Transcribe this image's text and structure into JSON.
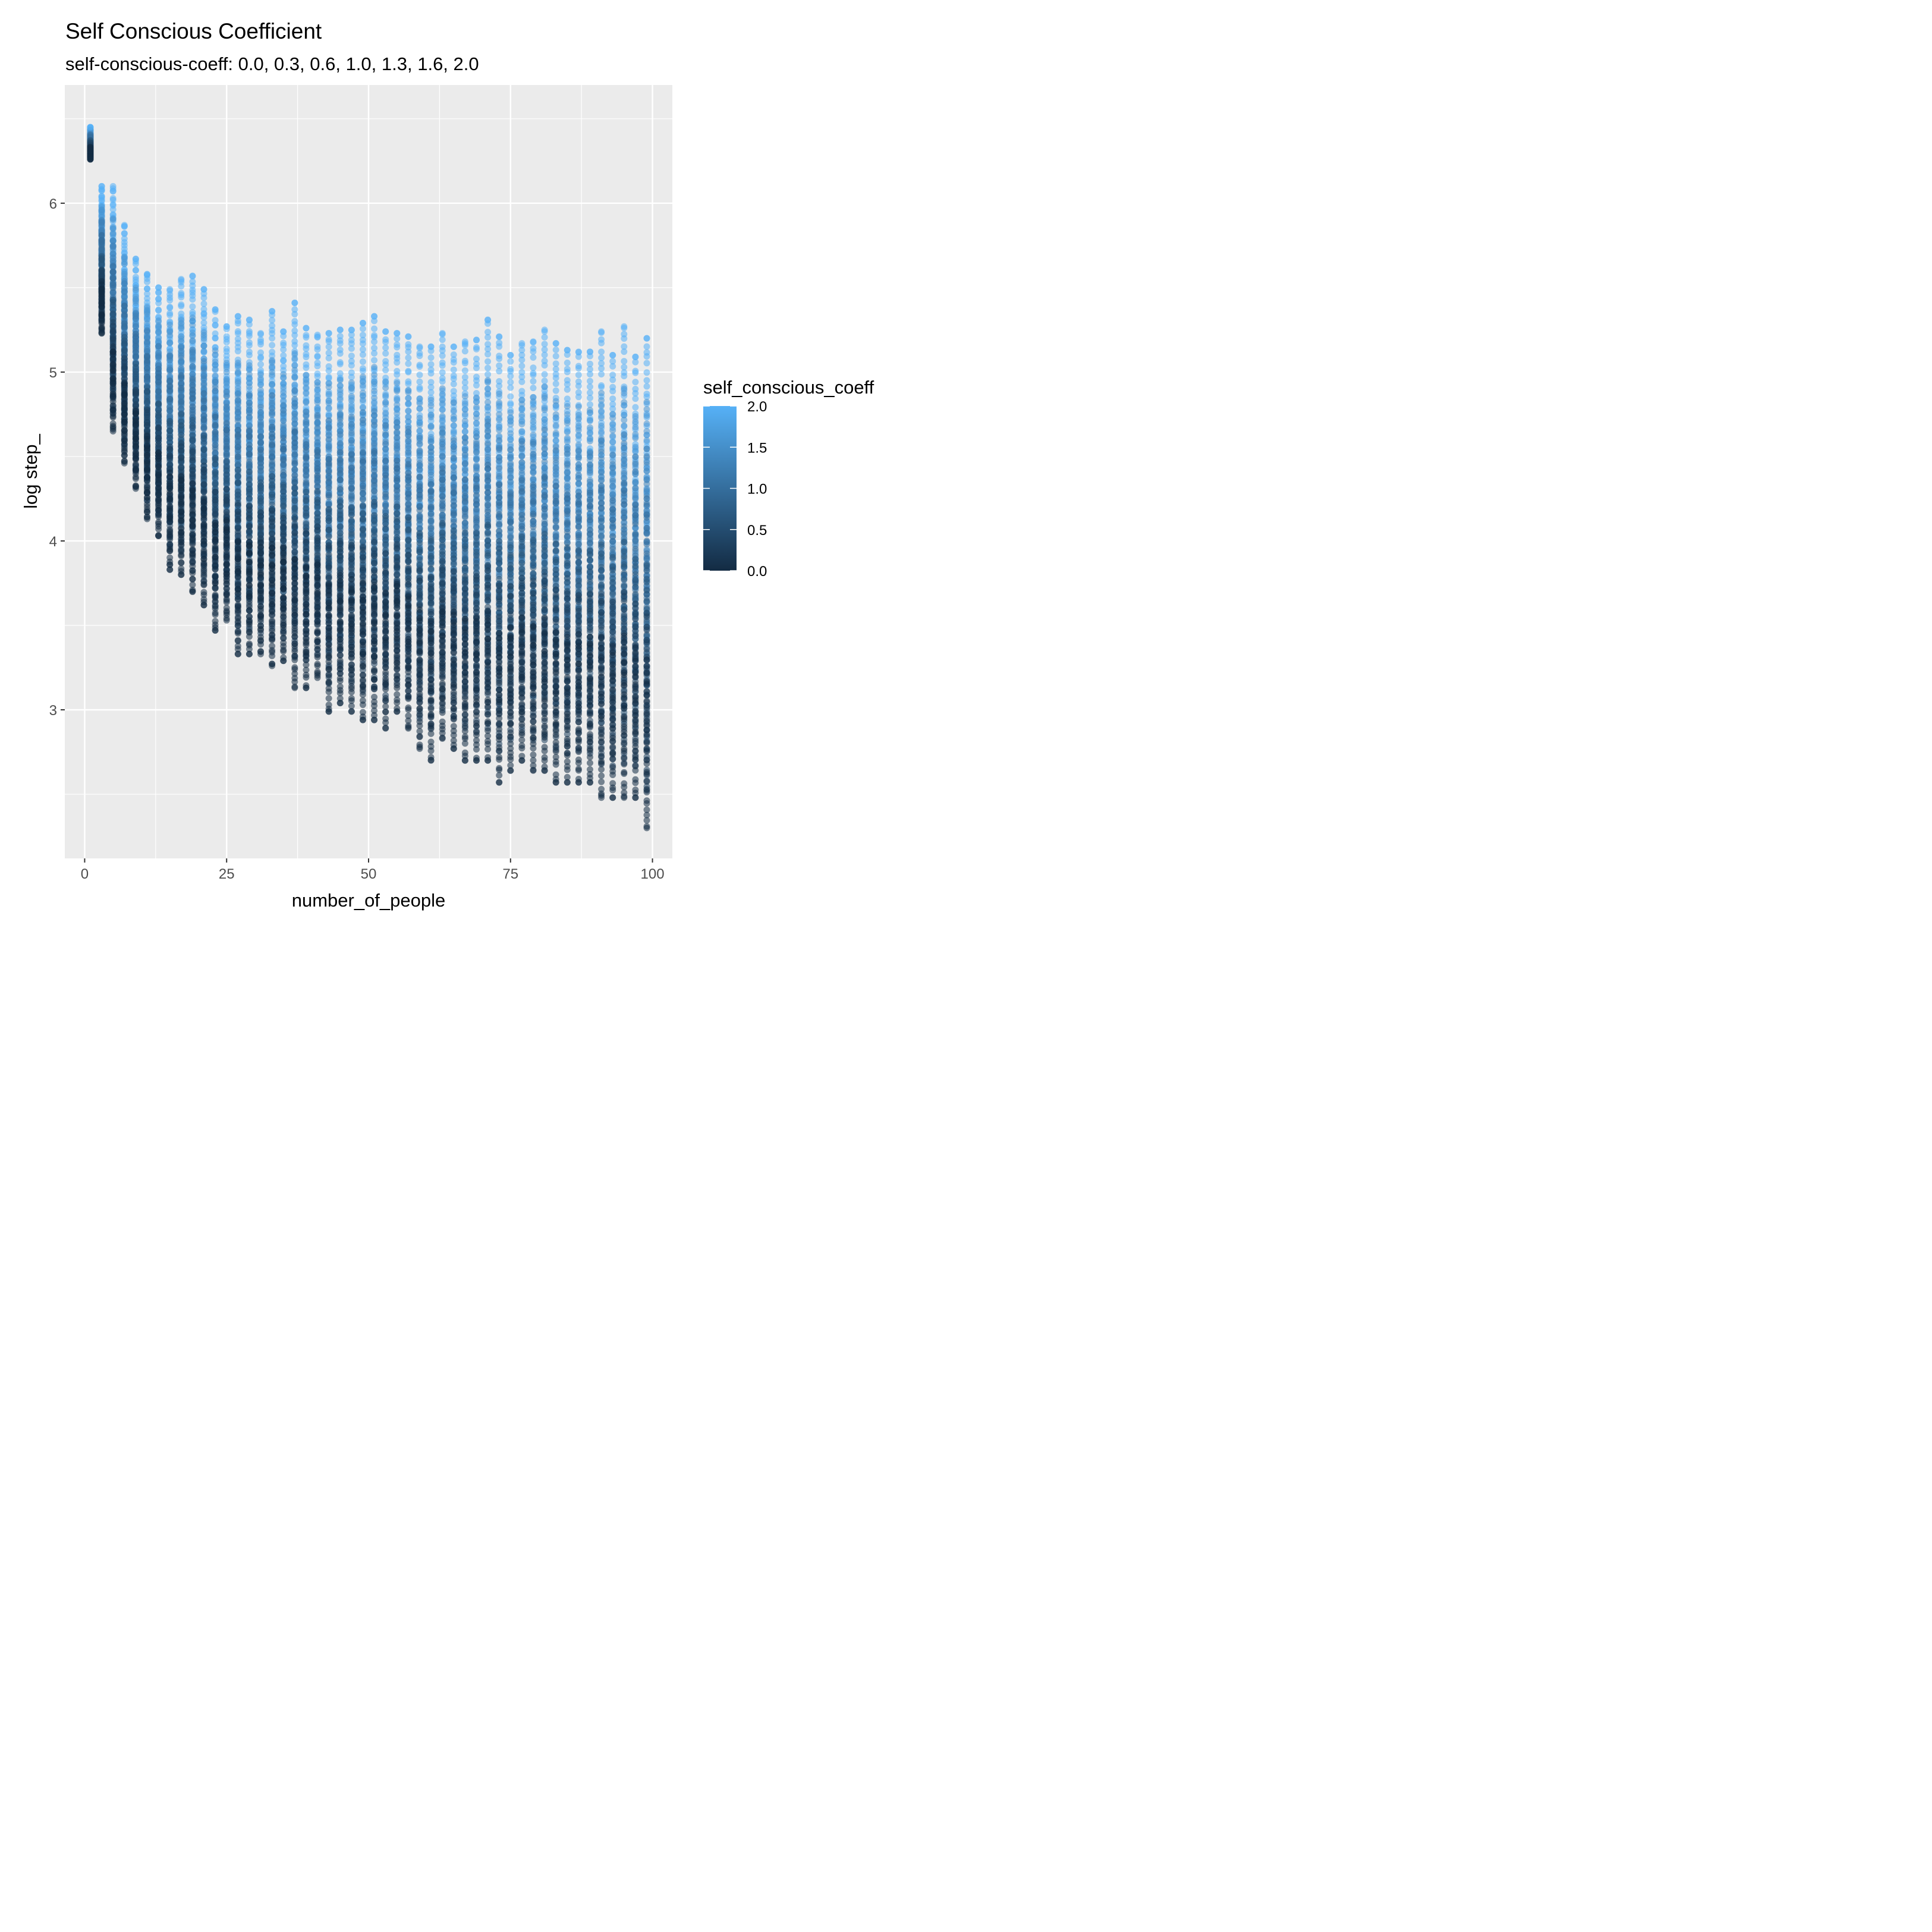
{
  "chart_data": {
    "type": "scatter",
    "title": "Self Conscious Coefficient",
    "subtitle": "self-conscious-coeff: 0.0, 0.3, 0.6, 1.0, 1.3, 1.6, 2.0",
    "xlabel": "number_of_people",
    "ylabel": "log step_",
    "xlim": [
      -3.5,
      103.5
    ],
    "ylim": [
      2.12,
      6.7
    ],
    "x_ticks": [
      0,
      25,
      50,
      75,
      100
    ],
    "x_tick_labels": [
      "0",
      "25",
      "50",
      "75",
      "100"
    ],
    "y_ticks": [
      3,
      4,
      5,
      6
    ],
    "y_tick_labels": [
      "3",
      "4",
      "5",
      "6"
    ],
    "grid": true,
    "legend": {
      "title": "self_conscious_coeff",
      "type": "colorbar",
      "placement": "right",
      "range": [
        0.0,
        2.0
      ],
      "ticks": [
        0.0,
        0.5,
        1.0,
        1.5,
        2.0
      ],
      "tick_labels": [
        "0.0",
        "0.5",
        "1.0",
        "1.5",
        "2.0"
      ],
      "color_low": "#132B43",
      "color_high": "#56B1F7"
    },
    "coeff_levels": [
      0.0,
      0.3,
      0.6,
      1.0,
      1.3,
      1.6,
      2.0
    ],
    "x_values": [
      1,
      3,
      5,
      7,
      9,
      11,
      13,
      15,
      17,
      19,
      21,
      23,
      25,
      27,
      29,
      31,
      33,
      35,
      37,
      39,
      41,
      43,
      45,
      47,
      49,
      51,
      53,
      55,
      57,
      59,
      61,
      63,
      65,
      67,
      69,
      71,
      73,
      75,
      77,
      79,
      81,
      83,
      85,
      87,
      89,
      91,
      93,
      95,
      97,
      99
    ],
    "column_envelope": {
      "x": [
        1,
        3,
        5,
        7,
        9,
        11,
        13,
        15,
        17,
        19,
        21,
        23,
        25,
        27,
        29,
        31,
        33,
        35,
        37,
        39,
        41,
        43,
        45,
        47,
        49,
        51,
        53,
        55,
        57,
        59,
        61,
        63,
        65,
        67,
        69,
        71,
        73,
        75,
        77,
        79,
        81,
        83,
        85,
        87,
        89,
        91,
        93,
        95,
        97,
        99
      ],
      "y_min": [
        6.26,
        5.23,
        4.65,
        4.46,
        4.31,
        4.13,
        4.03,
        3.83,
        3.8,
        3.7,
        3.62,
        3.47,
        3.53,
        3.33,
        3.33,
        3.33,
        3.26,
        3.29,
        3.13,
        3.13,
        3.19,
        2.99,
        3.04,
        2.99,
        2.94,
        2.94,
        2.89,
        2.99,
        2.89,
        2.77,
        2.7,
        2.83,
        2.77,
        2.7,
        2.7,
        2.7,
        2.57,
        2.64,
        2.7,
        2.64,
        2.64,
        2.57,
        2.57,
        2.57,
        2.57,
        2.48,
        2.48,
        2.48,
        2.48,
        2.3
      ],
      "y_max": [
        6.45,
        6.1,
        6.1,
        5.87,
        5.67,
        5.58,
        5.5,
        5.49,
        5.55,
        5.57,
        5.49,
        5.37,
        5.27,
        5.33,
        5.31,
        5.23,
        5.36,
        5.24,
        5.41,
        5.26,
        5.22,
        5.23,
        5.25,
        5.25,
        5.29,
        5.33,
        5.24,
        5.23,
        5.21,
        5.15,
        5.15,
        5.23,
        5.15,
        5.18,
        5.19,
        5.31,
        5.21,
        5.1,
        5.17,
        5.18,
        5.25,
        5.17,
        5.13,
        5.12,
        5.12,
        5.24,
        5.1,
        5.27,
        5.09,
        5.2
      ]
    }
  }
}
